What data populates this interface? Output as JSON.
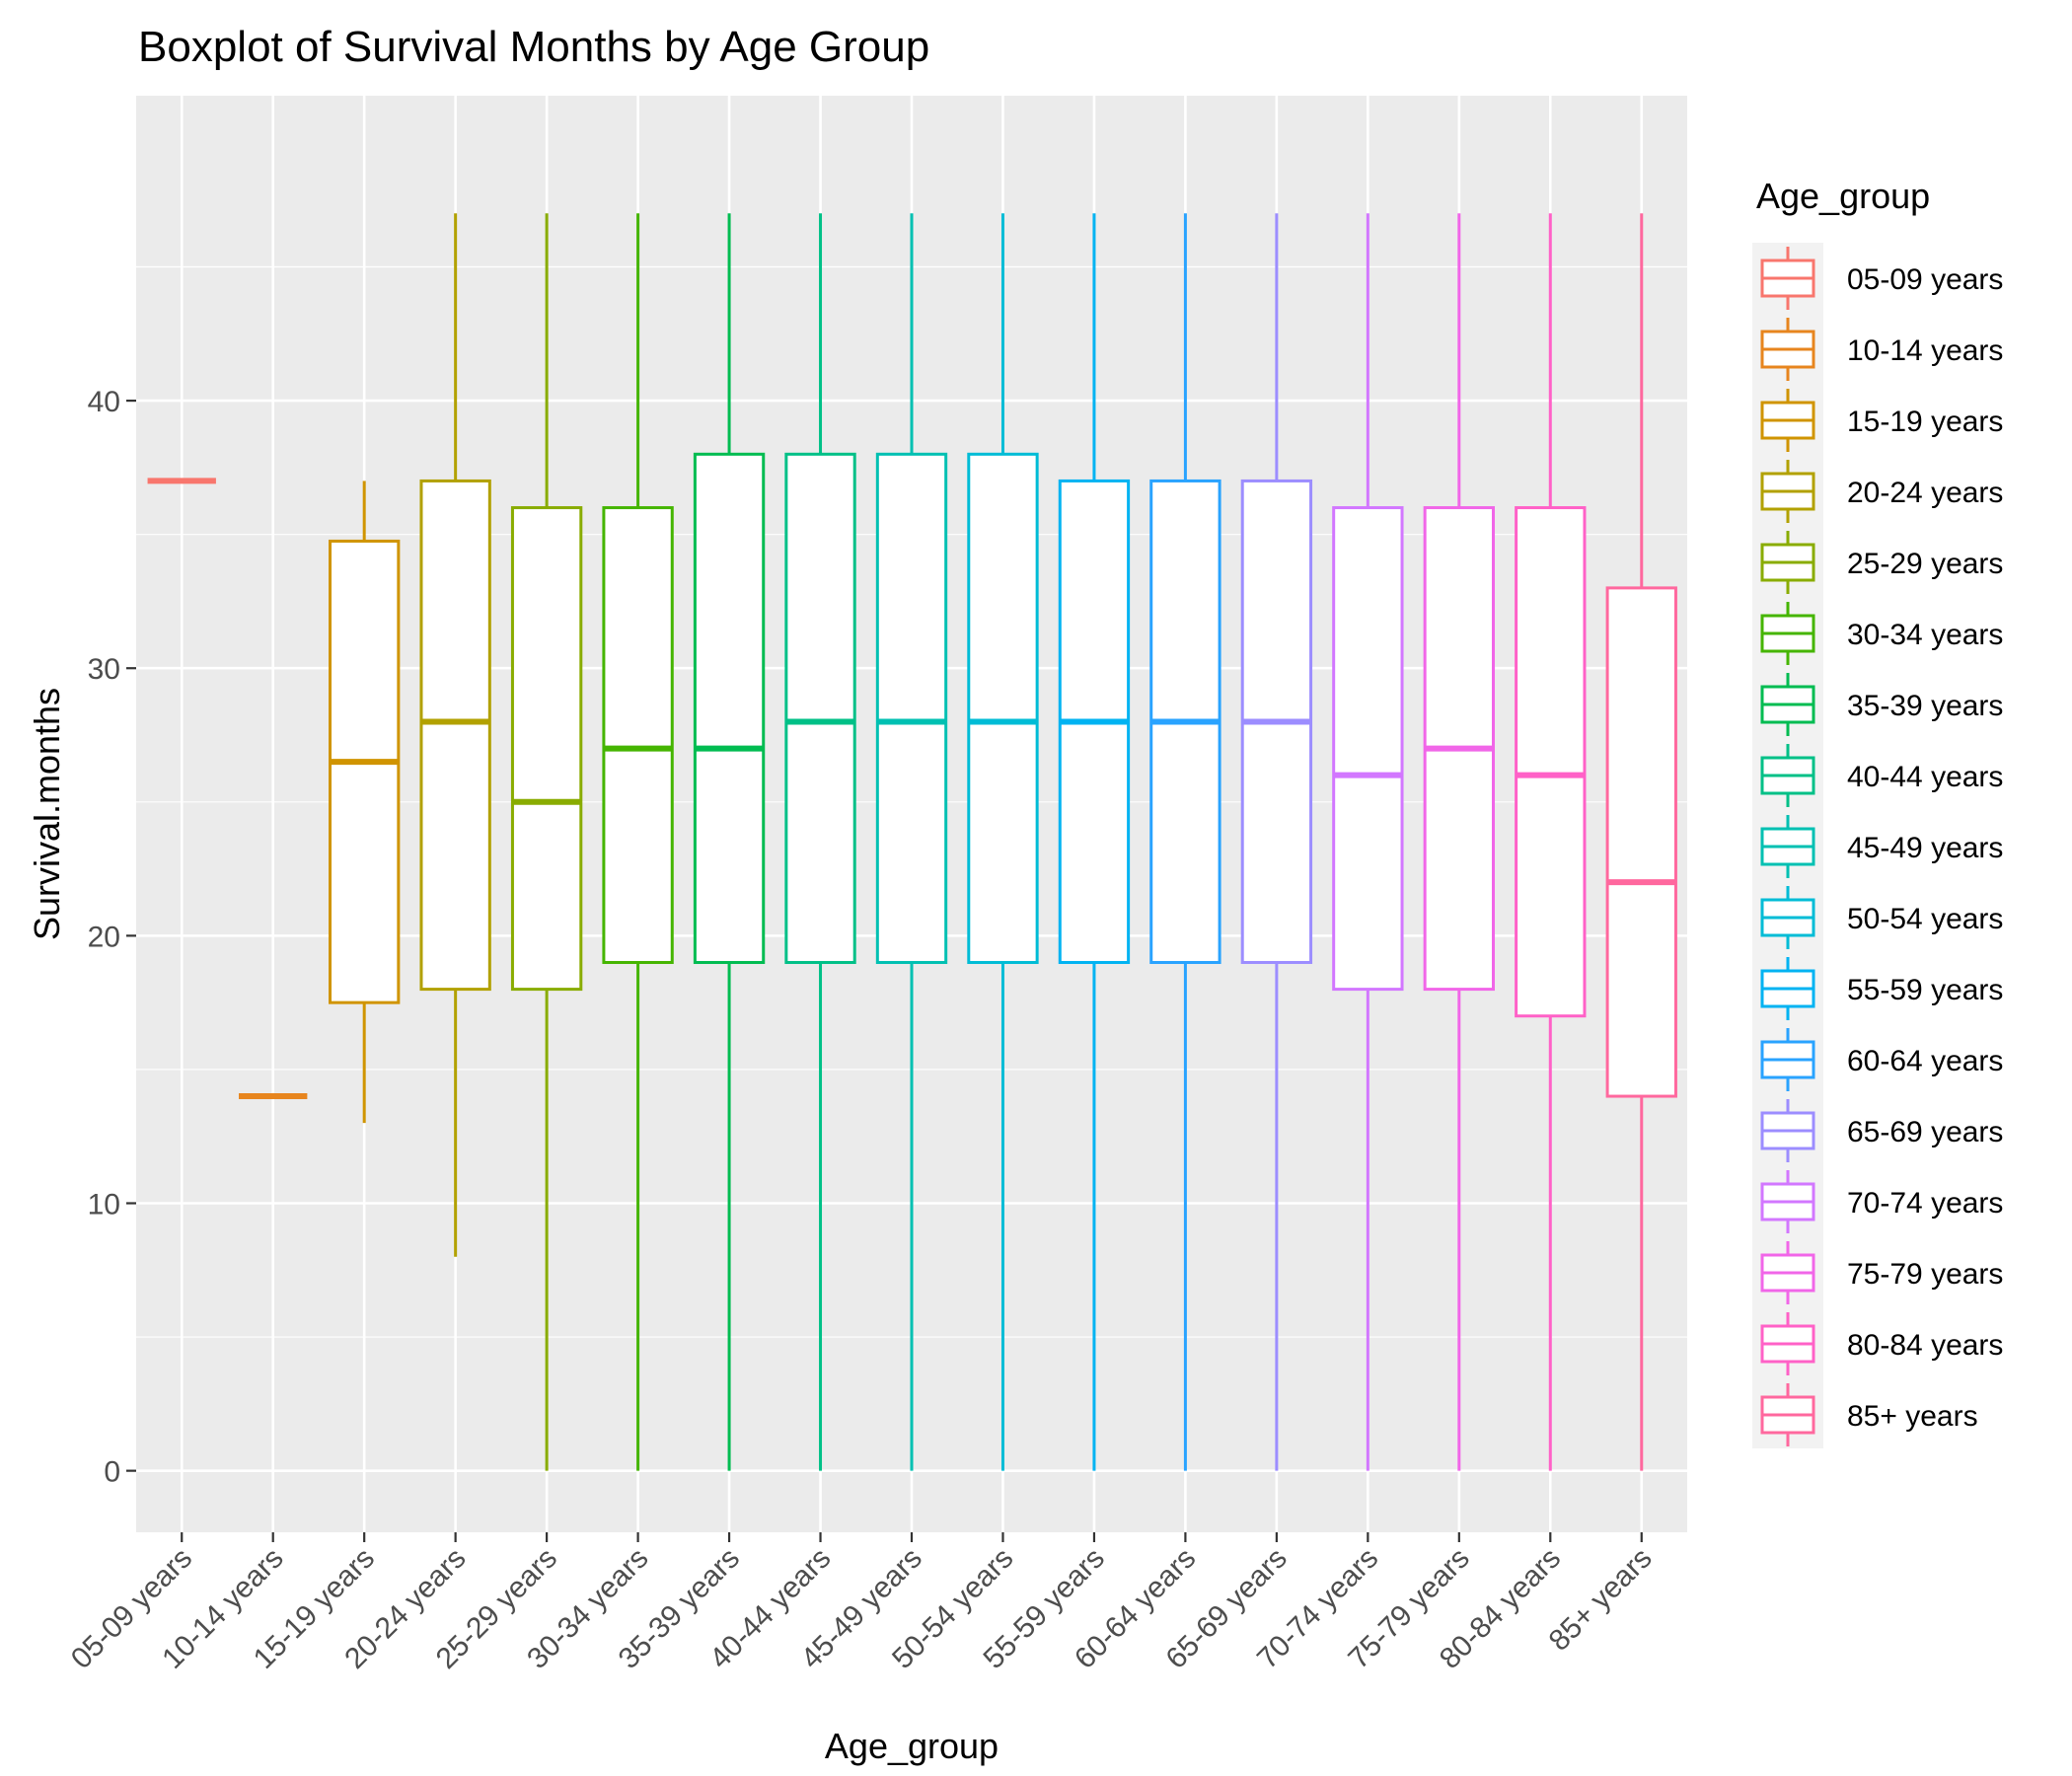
{
  "chart_data": {
    "type": "box",
    "title": "Boxplot of Survival Months by Age Group",
    "xlabel": "Age_group",
    "ylabel": "Survival.months",
    "ylim": [
      -2.3,
      51.4
    ],
    "y_ticks": [
      0,
      10,
      20,
      30,
      40
    ],
    "grid": true,
    "legend": {
      "title": "Age_group",
      "position": "right"
    },
    "categories": [
      "05-09 years",
      "10-14 years",
      "15-19 years",
      "20-24 years",
      "25-29 years",
      "30-34 years",
      "35-39 years",
      "40-44 years",
      "45-49 years",
      "50-54 years",
      "55-59 years",
      "60-64 years",
      "65-69 years",
      "70-74 years",
      "75-79 years",
      "80-84 years",
      "85+ years"
    ],
    "colors": [
      "#F8766D",
      "#E7851E",
      "#D09400",
      "#B2A100",
      "#89AC00",
      "#45B500",
      "#00BC51",
      "#00C087",
      "#00C0B2",
      "#00BCD6",
      "#00B3F2",
      "#29A3FF",
      "#9C8DFF",
      "#D277FF",
      "#F166E8",
      "#FF61C7",
      "#FF689E"
    ],
    "boxes": [
      {
        "min": 37,
        "q1": 37,
        "median": 37,
        "q3": 37,
        "max": 37
      },
      {
        "min": 14,
        "q1": 14,
        "median": 14,
        "q3": 14,
        "max": 14
      },
      {
        "min": 13,
        "q1": 17.5,
        "median": 26.5,
        "q3": 34.75,
        "max": 37
      },
      {
        "min": 8,
        "q1": 18,
        "median": 28,
        "q3": 37,
        "max": 47
      },
      {
        "min": 0,
        "q1": 18,
        "median": 25,
        "q3": 36,
        "max": 47
      },
      {
        "min": 0,
        "q1": 19,
        "median": 27,
        "q3": 36,
        "max": 47
      },
      {
        "min": 0,
        "q1": 19,
        "median": 27,
        "q3": 38,
        "max": 47
      },
      {
        "min": 0,
        "q1": 19,
        "median": 28,
        "q3": 38,
        "max": 47
      },
      {
        "min": 0,
        "q1": 19,
        "median": 28,
        "q3": 38,
        "max": 47
      },
      {
        "min": 0,
        "q1": 19,
        "median": 28,
        "q3": 38,
        "max": 47
      },
      {
        "min": 0,
        "q1": 19,
        "median": 28,
        "q3": 37,
        "max": 47
      },
      {
        "min": 0,
        "q1": 19,
        "median": 28,
        "q3": 37,
        "max": 47
      },
      {
        "min": 0,
        "q1": 19,
        "median": 28,
        "q3": 37,
        "max": 47
      },
      {
        "min": 0,
        "q1": 18,
        "median": 26,
        "q3": 36,
        "max": 47
      },
      {
        "min": 0,
        "q1": 18,
        "median": 27,
        "q3": 36,
        "max": 47
      },
      {
        "min": 0,
        "q1": 17,
        "median": 26,
        "q3": 36,
        "max": 47
      },
      {
        "min": 0,
        "q1": 14,
        "median": 22,
        "q3": 33,
        "max": 47
      }
    ]
  }
}
